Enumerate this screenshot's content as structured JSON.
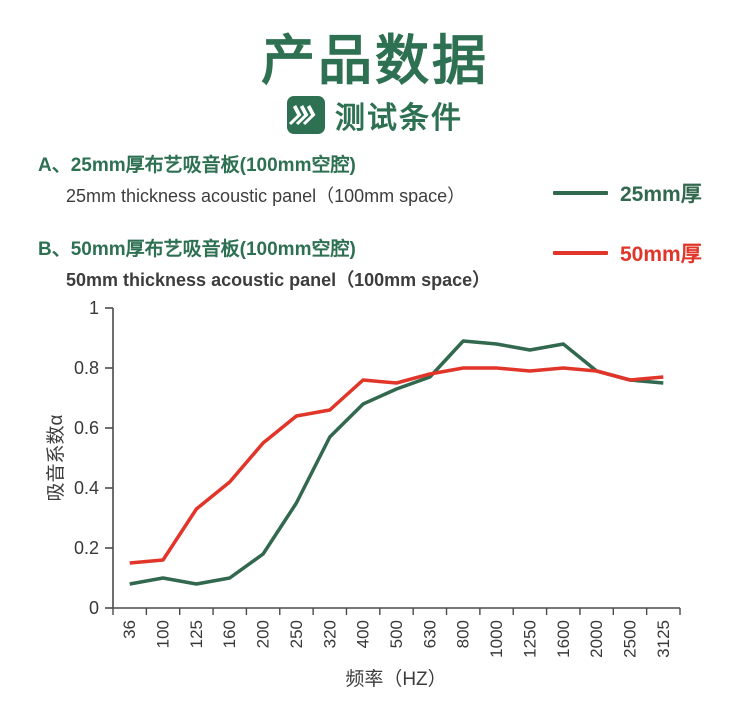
{
  "header": {
    "title": "产品数据",
    "subtitle": "测试条件"
  },
  "specs": [
    {
      "zh": "A、25mm厚布艺吸音板(100mm空腔)",
      "en": "25mm thickness acoustic panel（100mm space）"
    },
    {
      "zh": "B、50mm厚布艺吸音板(100mm空腔)",
      "en": "50mm thickness acoustic panel（100mm space）"
    }
  ],
  "colors": {
    "brand_green": "#2e7052",
    "line_green": "#31684e",
    "line_red": "#e2352a",
    "text_dark": "#3d3d3d",
    "axis": "#4a4a4a"
  },
  "chart_data": {
    "type": "line",
    "title": "",
    "xlabel": "频率（HZ）",
    "ylabel": "吸音系数α",
    "categories": [
      "36",
      "100",
      "125",
      "160",
      "200",
      "250",
      "320",
      "400",
      "500",
      "630",
      "800",
      "1000",
      "1250",
      "1600",
      "2000",
      "2500",
      "3125"
    ],
    "ylim": [
      0,
      1
    ],
    "yticks": [
      "0",
      "0.2",
      "0.4",
      "0.6",
      "0.8",
      "1"
    ],
    "grid": false,
    "legend_position": "right-of-specs",
    "series": [
      {
        "name": "25mm厚",
        "color": "#31684e",
        "values": [
          0.08,
          0.1,
          0.08,
          0.1,
          0.18,
          0.35,
          0.57,
          0.68,
          0.73,
          0.77,
          0.89,
          0.88,
          0.86,
          0.88,
          0.79,
          0.76,
          0.75
        ]
      },
      {
        "name": "50mm厚",
        "color": "#e2352a",
        "values": [
          0.15,
          0.16,
          0.33,
          0.42,
          0.55,
          0.64,
          0.66,
          0.76,
          0.75,
          0.78,
          0.8,
          0.8,
          0.79,
          0.8,
          0.79,
          0.76,
          0.77
        ]
      }
    ]
  }
}
